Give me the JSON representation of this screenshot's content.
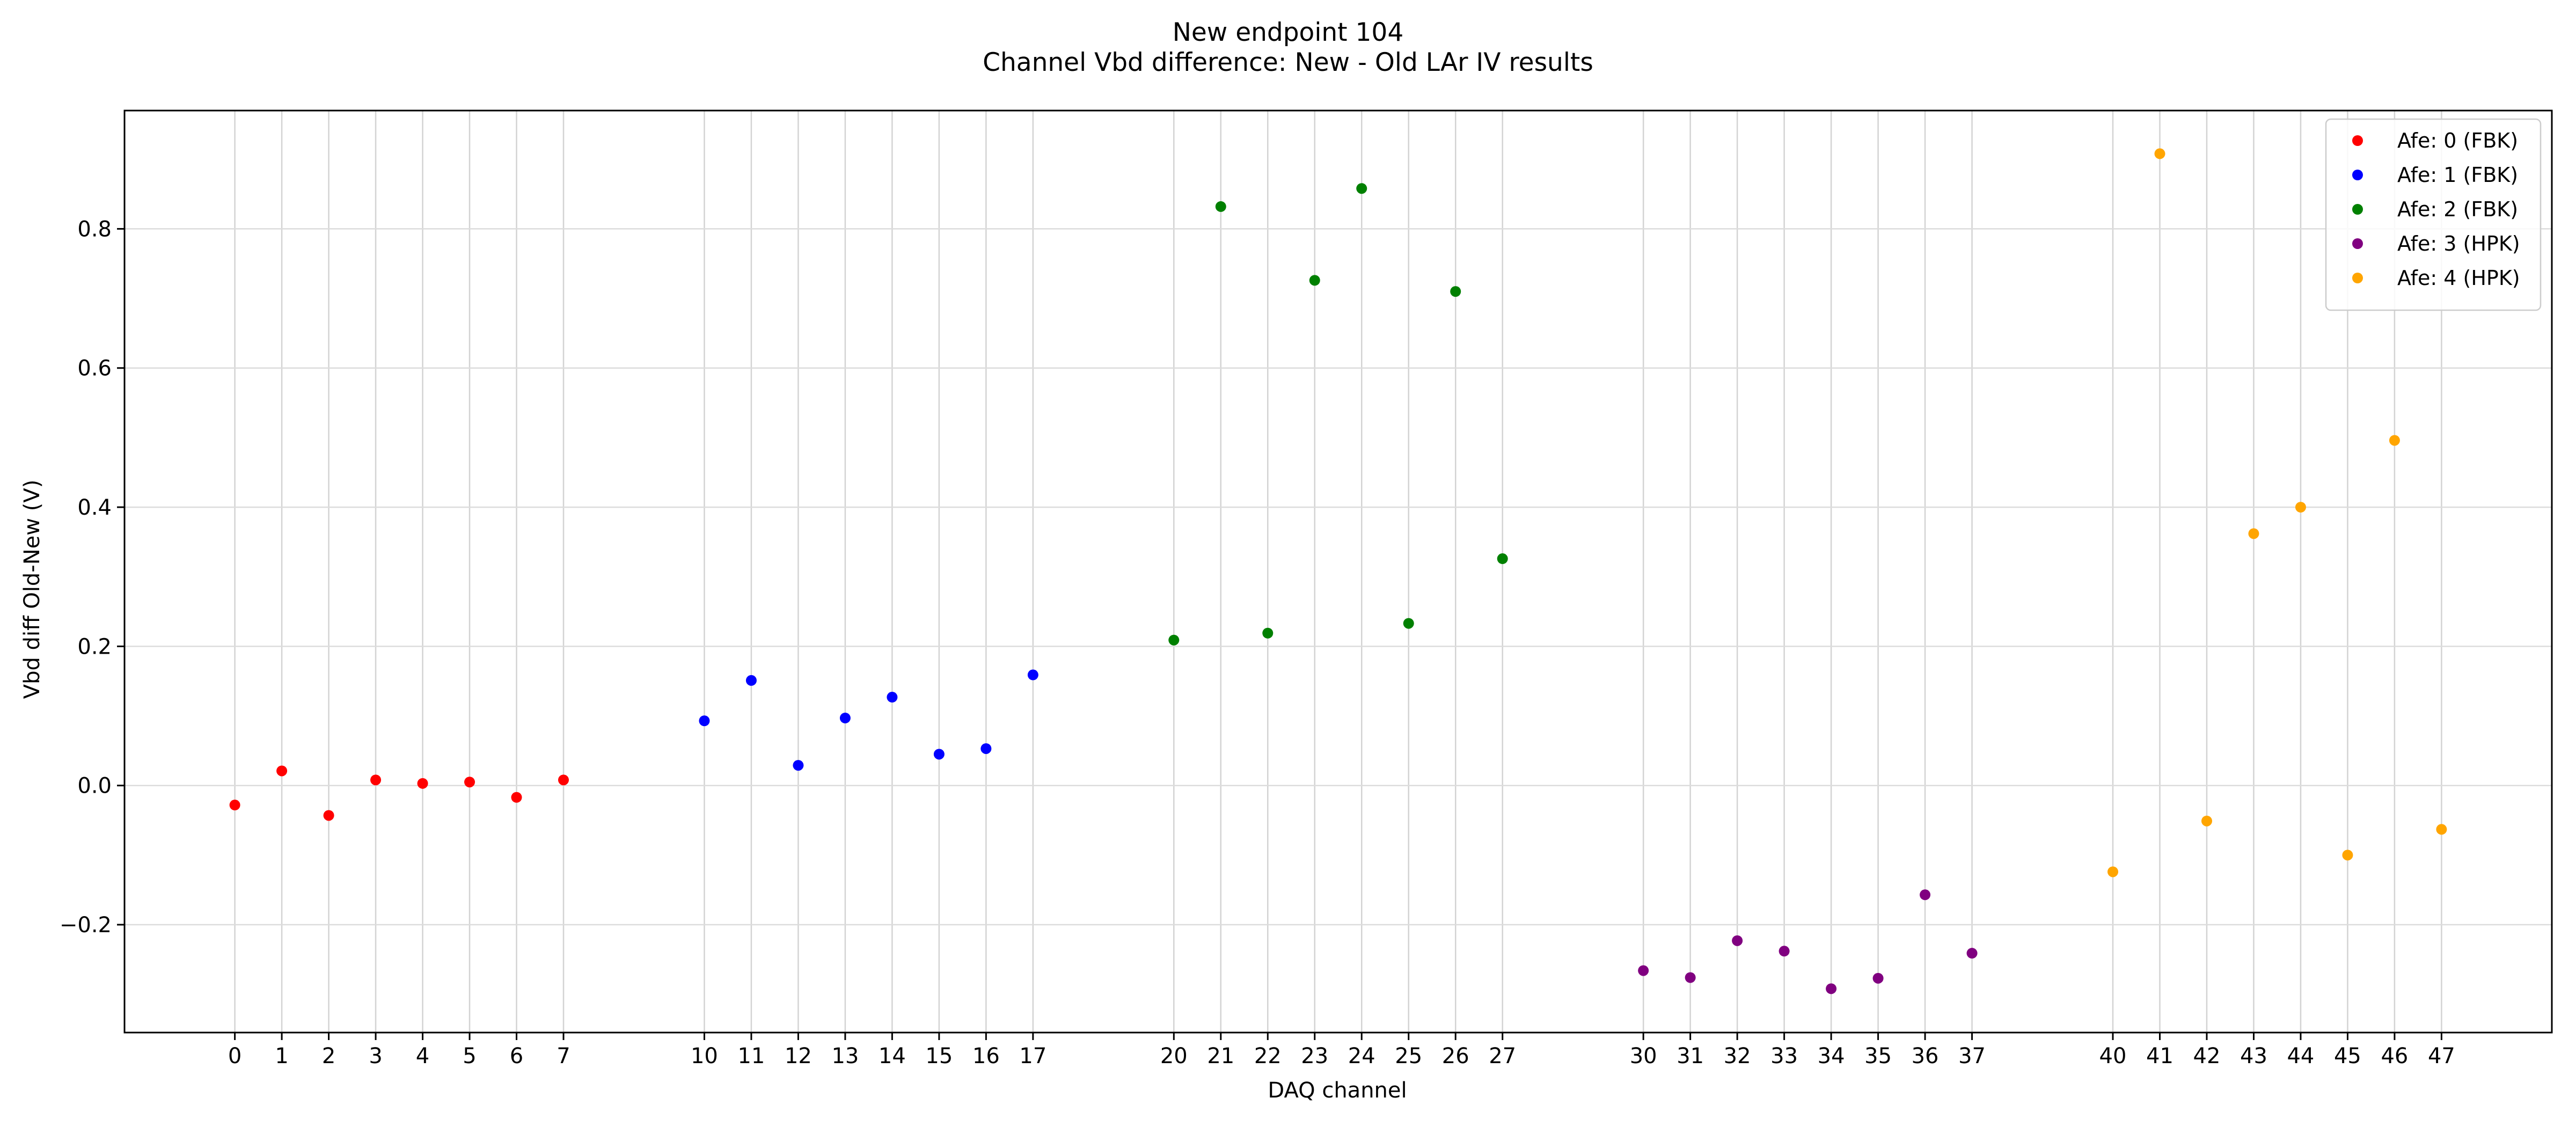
{
  "chart_data": {
    "type": "scatter",
    "title": "New endpoint 104",
    "subtitle": "Channel Vbd difference: New - Old LAr IV results",
    "xlabel": "DAQ channel",
    "ylabel": "Vbd diff Old-New (V)",
    "xlim": [
      -2.35,
      49.35
    ],
    "ylim": [
      -0.355,
      0.97
    ],
    "x_ticks": [
      0,
      1,
      2,
      3,
      4,
      5,
      6,
      7,
      10,
      11,
      12,
      13,
      14,
      15,
      16,
      17,
      20,
      21,
      22,
      23,
      24,
      25,
      26,
      27,
      30,
      31,
      32,
      33,
      34,
      35,
      36,
      37,
      40,
      41,
      42,
      43,
      44,
      45,
      46,
      47
    ],
    "y_ticks": [
      -0.2,
      0.0,
      0.2,
      0.4,
      0.6,
      0.8
    ],
    "y_tick_labels": [
      "−0.2",
      "0.0",
      "0.2",
      "0.4",
      "0.6",
      "0.8"
    ],
    "grid": "vertical at every x tick; horizontal at every y tick",
    "legend_position": "upper-right",
    "series": [
      {
        "name": "Afe: 0 (FBK)",
        "color": "#ff0000",
        "x": [
          0,
          1,
          2,
          3,
          4,
          5,
          6,
          7
        ],
        "y": [
          -0.028,
          0.021,
          -0.043,
          0.008,
          0.003,
          0.005,
          -0.017,
          0.008
        ]
      },
      {
        "name": "Afe: 1 (FBK)",
        "color": "#0000ff",
        "x": [
          10,
          11,
          12,
          13,
          14,
          15,
          16,
          17
        ],
        "y": [
          0.093,
          0.151,
          0.029,
          0.097,
          0.127,
          0.045,
          0.053,
          0.159
        ]
      },
      {
        "name": "Afe: 2 (FBK)",
        "color": "#008000",
        "x": [
          20,
          21,
          22,
          23,
          24,
          25,
          26,
          27
        ],
        "y": [
          0.209,
          0.832,
          0.219,
          0.726,
          0.858,
          0.233,
          0.71,
          0.326
        ]
      },
      {
        "name": "Afe: 3 (HPK)",
        "color": "#800080",
        "x": [
          30,
          31,
          32,
          33,
          34,
          35,
          36,
          37
        ],
        "y": [
          -0.266,
          -0.276,
          -0.223,
          -0.238,
          -0.292,
          -0.277,
          -0.157,
          -0.241
        ]
      },
      {
        "name": "Afe: 4 (HPK)",
        "color": "#ffa500",
        "x": [
          40,
          41,
          42,
          43,
          44,
          45,
          46,
          47
        ],
        "y": [
          -0.124,
          0.908,
          -0.051,
          0.362,
          0.4,
          -0.1,
          0.496,
          -0.063
        ]
      }
    ]
  }
}
